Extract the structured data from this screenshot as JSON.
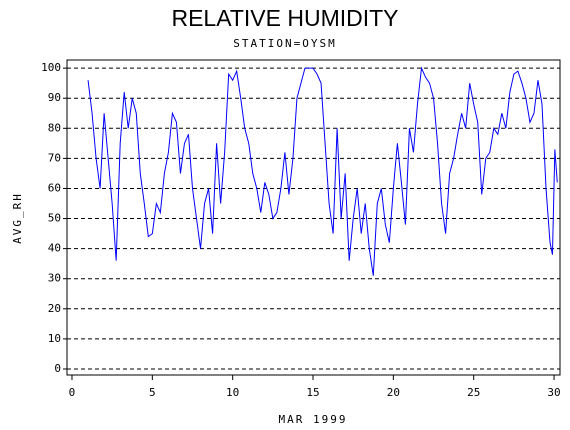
{
  "chart_data": {
    "type": "line",
    "title": "RELATIVE HUMIDITY",
    "subtitle": "STATION=OYSM",
    "x_label": "MAR 1999",
    "y_label": "AVG_RH",
    "color": "#0000ff",
    "grid": true,
    "x": [
      1.0,
      1.25,
      1.5,
      1.75,
      2.0,
      2.25,
      2.5,
      2.75,
      3.0,
      3.25,
      3.5,
      3.75,
      4.0,
      4.25,
      4.5,
      4.75,
      5.0,
      5.25,
      5.5,
      5.75,
      6.0,
      6.25,
      6.5,
      6.75,
      7.0,
      7.25,
      7.5,
      7.75,
      8.0,
      8.25,
      8.5,
      8.75,
      9.0,
      9.25,
      9.5,
      9.75,
      10.0,
      10.25,
      10.5,
      10.75,
      11.0,
      11.25,
      11.5,
      11.75,
      12.0,
      12.25,
      12.5,
      12.75,
      13.0,
      13.25,
      13.5,
      13.75,
      14.0,
      14.25,
      14.5,
      14.75,
      15.0,
      15.25,
      15.5,
      15.75,
      16.0,
      16.25,
      16.5,
      16.75,
      17.0,
      17.25,
      17.5,
      17.75,
      18.0,
      18.25,
      18.5,
      18.75,
      19.0,
      19.25,
      19.5,
      19.75,
      20.0,
      20.25,
      20.5,
      20.75,
      21.0,
      21.25,
      21.5,
      21.75,
      22.0,
      22.25,
      22.5,
      22.75,
      23.0,
      23.25,
      23.5,
      23.75,
      24.0,
      24.25,
      24.5,
      24.75,
      25.0,
      25.25,
      25.5,
      25.75,
      26.0,
      26.25,
      26.5,
      26.75,
      27.0,
      27.25,
      27.5,
      27.75,
      28.0,
      28.25,
      28.5,
      28.75,
      29.0,
      29.25,
      29.5,
      29.75,
      29.9,
      30.05,
      30.2
    ],
    "values": [
      96,
      85,
      70,
      60,
      85,
      70,
      55,
      36,
      75,
      92,
      80,
      90,
      85,
      65,
      55,
      44,
      45,
      55,
      52,
      65,
      72,
      85,
      82,
      65,
      75,
      78,
      60,
      50,
      40,
      55,
      60,
      45,
      75,
      55,
      72,
      98,
      96,
      99,
      90,
      80,
      75,
      65,
      60,
      52,
      62,
      58,
      50,
      52,
      60,
      72,
      58,
      70,
      90,
      95,
      100,
      100,
      100,
      98,
      95,
      75,
      55,
      45,
      80,
      50,
      65,
      36,
      50,
      60,
      45,
      55,
      40,
      31,
      55,
      60,
      48,
      42,
      60,
      75,
      62,
      48,
      80,
      72,
      88,
      100,
      97,
      95,
      90,
      75,
      55,
      45,
      65,
      70,
      78,
      85,
      80,
      95,
      88,
      82,
      58,
      70,
      72,
      80,
      78,
      85,
      80,
      92,
      98,
      99,
      95,
      90,
      82,
      85,
      96,
      88,
      60,
      42,
      38,
      73,
      62
    ],
    "xlim": [
      -0.31,
      30.37
    ],
    "ylim": [
      -2,
      102.7
    ],
    "xticks": [
      0,
      5,
      10,
      15,
      20,
      25,
      30
    ],
    "yticks": [
      0,
      10,
      20,
      30,
      40,
      50,
      60,
      70,
      80,
      90,
      100
    ]
  }
}
